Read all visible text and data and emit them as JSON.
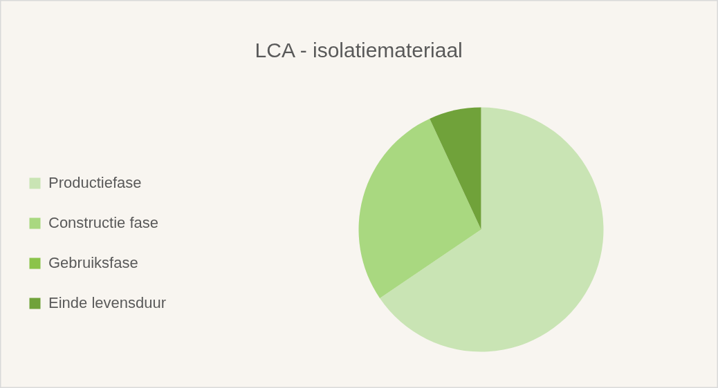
{
  "chart_data": {
    "type": "pie",
    "title": "LCA - isolatiemateriaal",
    "categories": [
      "Productiefase",
      "Constructie fase",
      "Gebruiksfase",
      "Einde levensduur"
    ],
    "values": [
      65.5,
      27.6,
      0,
      6.9
    ],
    "colors": [
      "#c9e4b4",
      "#a9d880",
      "#8bc34a",
      "#70a23a"
    ],
    "legend": "left"
  }
}
